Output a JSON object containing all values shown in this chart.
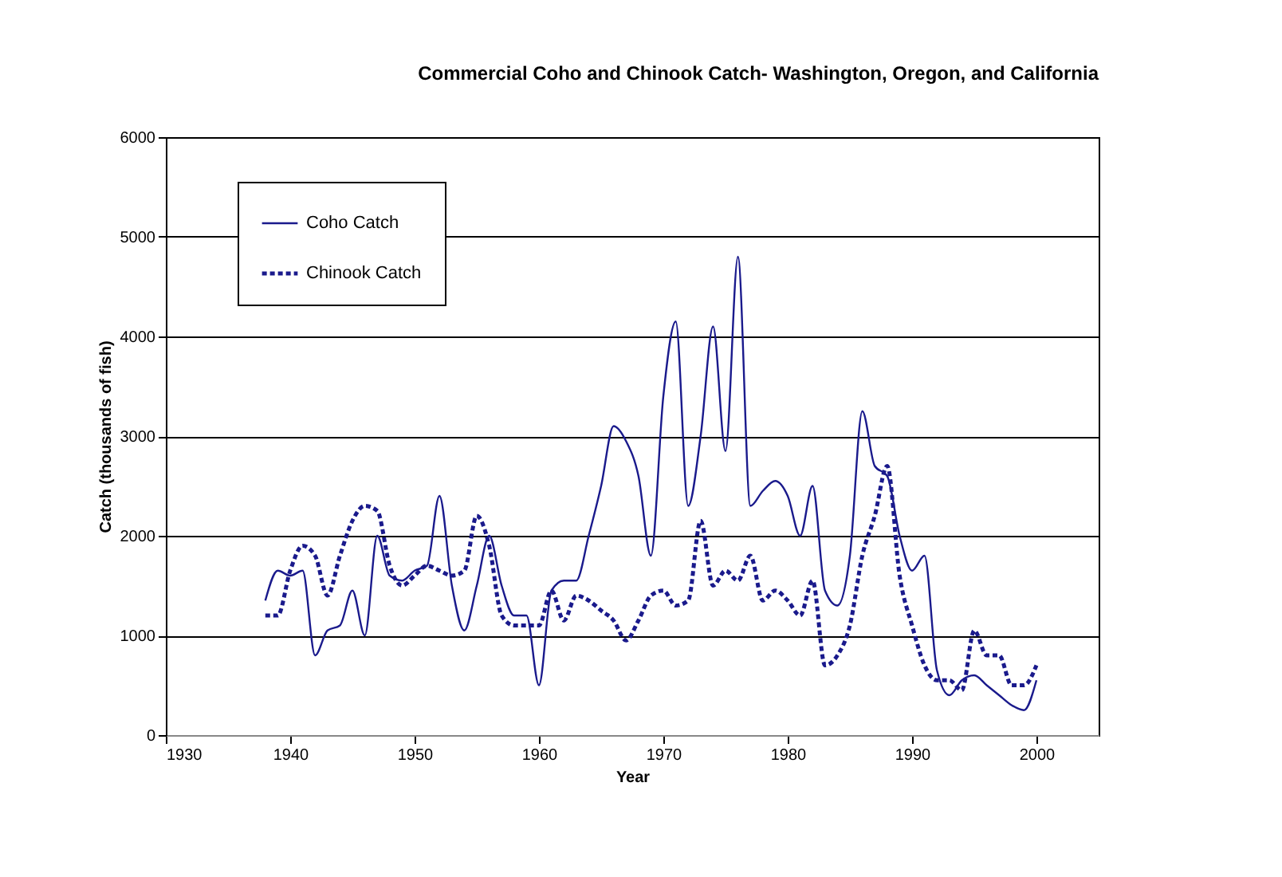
{
  "chart_data": {
    "type": "line",
    "title": "Commercial Coho and Chinook Catch- Washington, Oregon, and California",
    "xlabel": "Year",
    "ylabel": "Catch (thousands of fish)",
    "x": [
      1938,
      1939,
      1940,
      1941,
      1942,
      1943,
      1944,
      1945,
      1946,
      1947,
      1948,
      1949,
      1950,
      1951,
      1952,
      1953,
      1954,
      1955,
      1956,
      1957,
      1958,
      1959,
      1960,
      1961,
      1962,
      1963,
      1964,
      1965,
      1966,
      1967,
      1968,
      1969,
      1970,
      1971,
      1972,
      1973,
      1974,
      1975,
      1976,
      1977,
      1978,
      1979,
      1980,
      1981,
      1982,
      1983,
      1984,
      1985,
      1986,
      1987,
      1988,
      1989,
      1990,
      1991,
      1992,
      1993,
      1994,
      1995,
      1996,
      1997,
      1998,
      1999,
      2000
    ],
    "series": [
      {
        "name": "Coho Catch",
        "color": "#1a1a8c",
        "line_style": "solid",
        "values": [
          1350,
          1650,
          1600,
          1650,
          800,
          1050,
          1100,
          1450,
          1000,
          2000,
          1600,
          1550,
          1650,
          1700,
          2400,
          1500,
          1050,
          1500,
          2000,
          1500,
          1200,
          1200,
          500,
          1450,
          1550,
          1550,
          2000,
          2500,
          3100,
          2950,
          2600,
          1800,
          3400,
          4150,
          2300,
          3000,
          4100,
          2850,
          4800,
          2300,
          2450,
          2550,
          2400,
          2000,
          2500,
          1450,
          1300,
          1800,
          3250,
          2700,
          2600,
          2000,
          1650,
          1800,
          650,
          400,
          550,
          600,
          500,
          400,
          300,
          250,
          550
        ]
      },
      {
        "name": "Chinook Catch",
        "color": "#1a1a8c",
        "line_style": "dotted",
        "values": [
          1200,
          1200,
          1650,
          1900,
          1800,
          1400,
          1800,
          2150,
          2300,
          2250,
          1700,
          1500,
          1600,
          1700,
          1650,
          1600,
          1650,
          2200,
          1900,
          1200,
          1100,
          1100,
          1100,
          1450,
          1150,
          1400,
          1350,
          1250,
          1150,
          950,
          1150,
          1400,
          1450,
          1300,
          1350,
          2150,
          1500,
          1650,
          1550,
          1800,
          1350,
          1450,
          1350,
          1200,
          1550,
          700,
          800,
          1100,
          1800,
          2200,
          2700,
          1600,
          1100,
          700,
          550,
          550,
          450,
          1050,
          800,
          800,
          500,
          500,
          700
        ]
      }
    ],
    "xlim": [
      1930,
      2005
    ],
    "xticks": [
      1930,
      1940,
      1950,
      1960,
      1970,
      1980,
      1990,
      2000
    ],
    "ylim": [
      0,
      6000
    ],
    "yticks": [
      0,
      1000,
      2000,
      3000,
      4000,
      5000,
      6000
    ],
    "grid": "y",
    "legend": "top left",
    "marker": "none"
  }
}
